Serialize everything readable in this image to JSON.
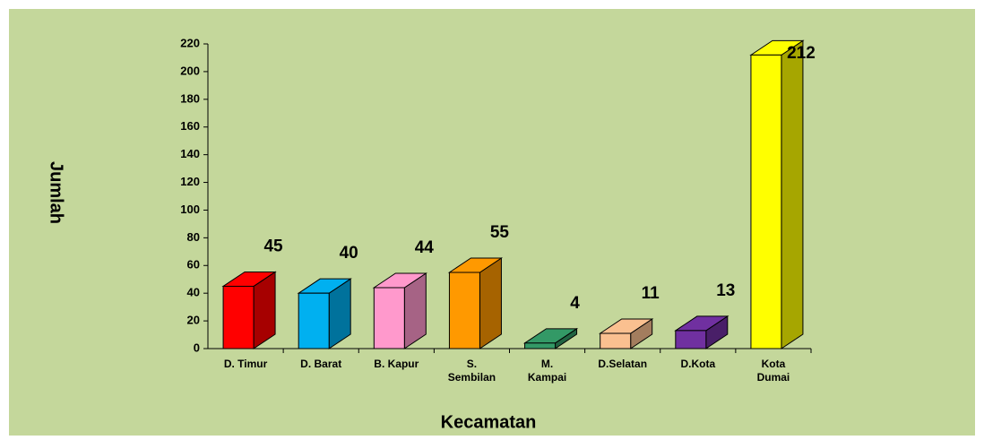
{
  "chart_data": {
    "type": "bar3d",
    "categories": [
      "D. Timur",
      "D. Barat",
      "B. Kapur",
      "S.\nSembilan",
      "M.\nKampai",
      "D.Selatan",
      "D.Kota",
      "Kota\nDumai"
    ],
    "values": [
      45,
      40,
      44,
      55,
      4,
      11,
      13,
      212
    ],
    "colors": [
      "#ff0000",
      "#00b0f0",
      "#ff99cc",
      "#ff9900",
      "#339966",
      "#fac090",
      "#7030a0",
      "#ffff00"
    ],
    "ylim": [
      0,
      220
    ],
    "yticks": [
      0,
      20,
      40,
      60,
      80,
      100,
      120,
      140,
      160,
      180,
      200,
      220
    ],
    "ylabel": "Jumlah",
    "xlabel": "Kecamatan"
  }
}
